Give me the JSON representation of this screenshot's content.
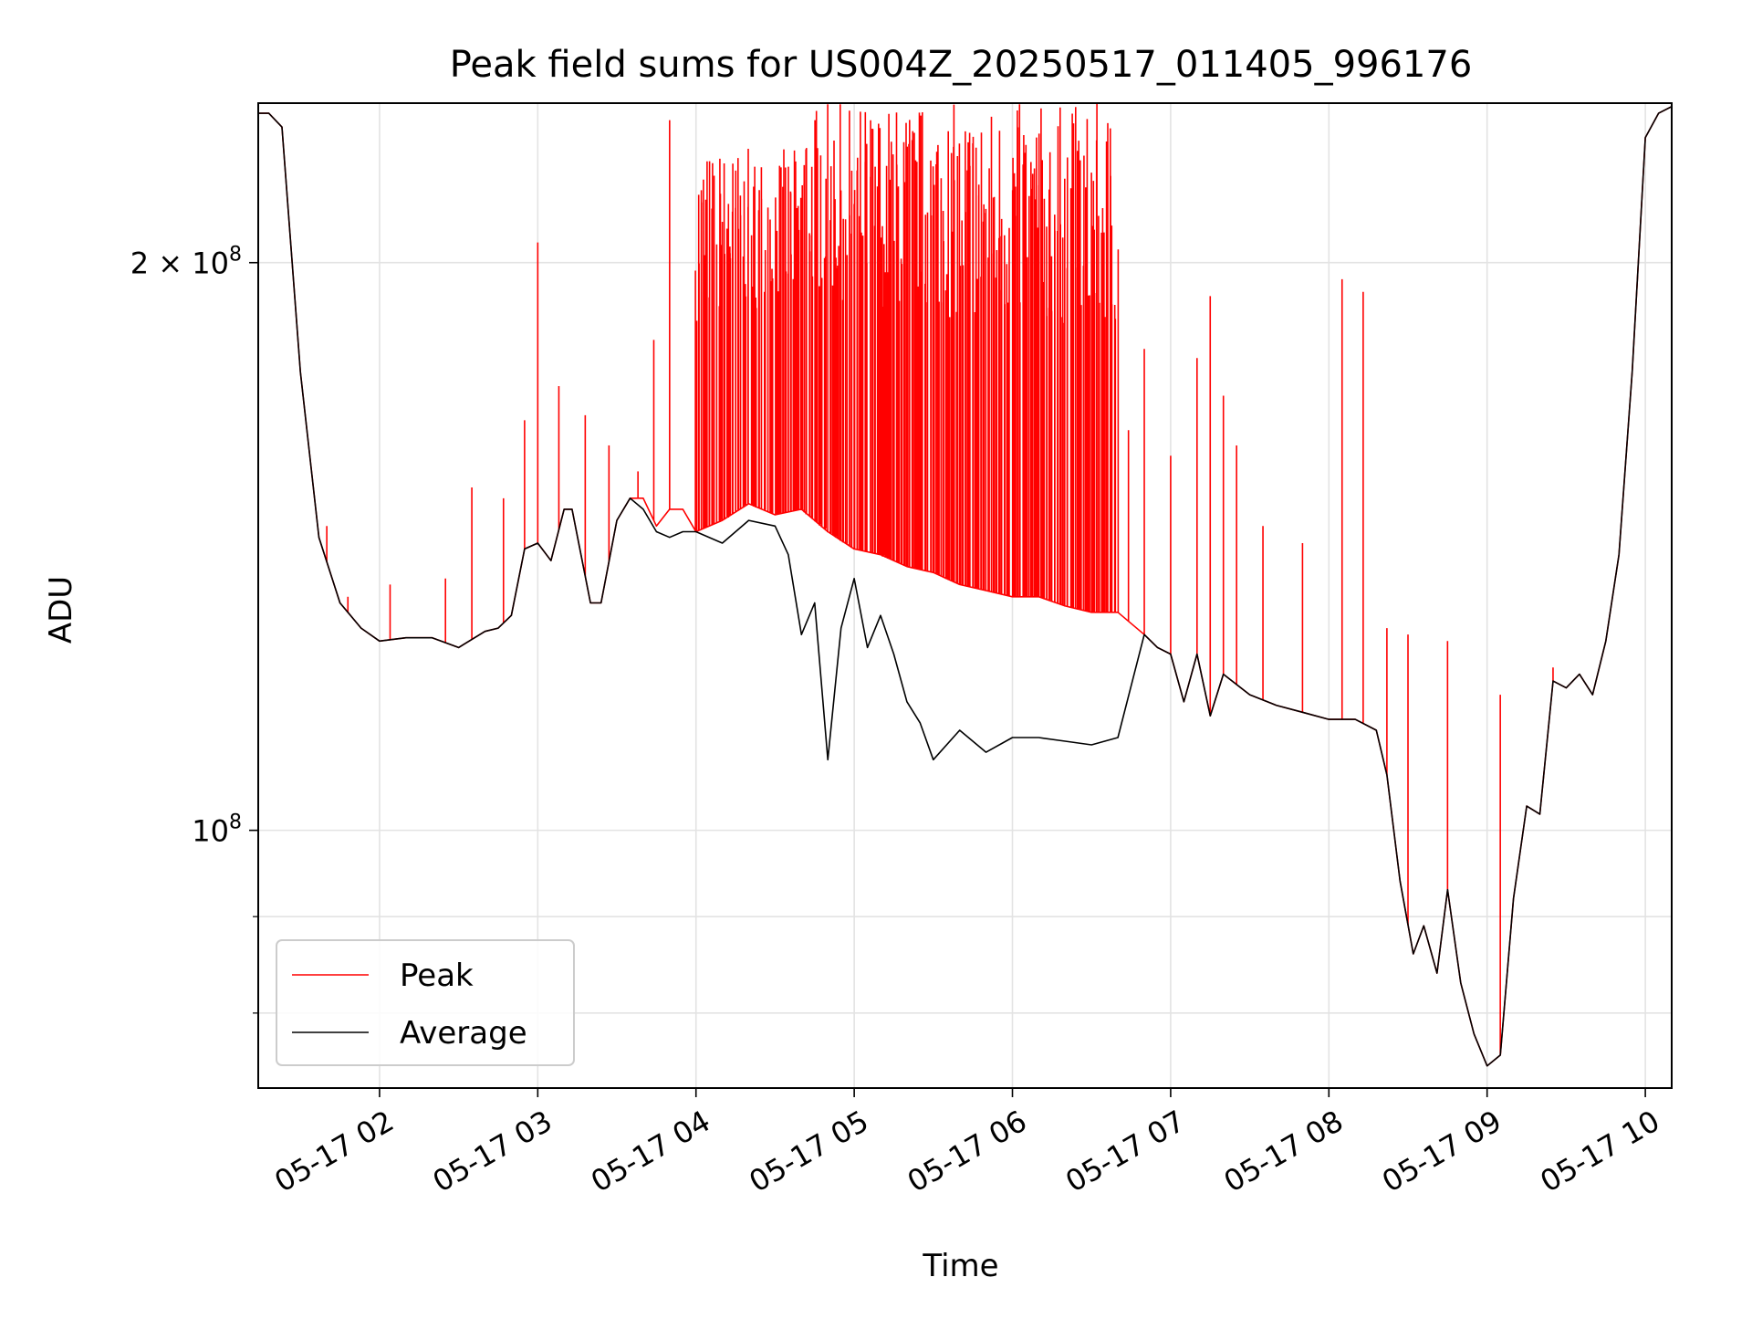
{
  "chart_data": {
    "type": "line",
    "title": "Peak field sums for US004Z_20250517_011405_996176",
    "xlabel": "Time",
    "ylabel": "ADU",
    "y_scale": "log",
    "grid": true,
    "legend_position": "lower-left",
    "xlim": [
      "2025-05-17 01:14",
      "2025-05-17 10:10"
    ],
    "ylim": [
      73000000,
      243000000
    ],
    "x_ticks": [
      {
        "value": "2025-05-17 02:00",
        "label": "05-17 02"
      },
      {
        "value": "2025-05-17 03:00",
        "label": "05-17 03"
      },
      {
        "value": "2025-05-17 04:00",
        "label": "05-17 04"
      },
      {
        "value": "2025-05-17 05:00",
        "label": "05-17 05"
      },
      {
        "value": "2025-05-17 06:00",
        "label": "05-17 06"
      },
      {
        "value": "2025-05-17 07:00",
        "label": "05-17 07"
      },
      {
        "value": "2025-05-17 08:00",
        "label": "05-17 08"
      },
      {
        "value": "2025-05-17 09:00",
        "label": "05-17 09"
      },
      {
        "value": "2025-05-17 10:00",
        "label": "05-17 10"
      }
    ],
    "y_ticks": [
      {
        "value": 200000000,
        "label_main": "2 × 10",
        "label_exp": "8"
      },
      {
        "value": 100000000,
        "label_main": "10",
        "label_exp": "8"
      }
    ],
    "y_minor_ticks": [
      80000000,
      90000000
    ],
    "series": [
      {
        "name": "Peak",
        "color": "#ff0000",
        "spike_bands": [
          {
            "from": "2025-05-17 04:00",
            "to": "2025-05-17 04:40",
            "top": 230000000
          },
          {
            "from": "2025-05-17 04:40",
            "to": "2025-05-17 06:40",
            "top": 243000000
          }
        ],
        "spikes": [
          {
            "x": "2025-05-17 01:40",
            "y": 145000000
          },
          {
            "x": "2025-05-17 01:48",
            "y": 133000000
          },
          {
            "x": "2025-05-17 02:04",
            "y": 135000000
          },
          {
            "x": "2025-05-17 02:25",
            "y": 136000000
          },
          {
            "x": "2025-05-17 02:35",
            "y": 152000000
          },
          {
            "x": "2025-05-17 02:47",
            "y": 150000000
          },
          {
            "x": "2025-05-17 02:55",
            "y": 165000000
          },
          {
            "x": "2025-05-17 03:00",
            "y": 205000000
          },
          {
            "x": "2025-05-17 03:08",
            "y": 172000000
          },
          {
            "x": "2025-05-17 03:18",
            "y": 166000000
          },
          {
            "x": "2025-05-17 03:27",
            "y": 160000000
          },
          {
            "x": "2025-05-17 03:38",
            "y": 155000000
          },
          {
            "x": "2025-05-17 03:44",
            "y": 182000000
          },
          {
            "x": "2025-05-17 03:50",
            "y": 238000000
          },
          {
            "x": "2025-05-17 06:44",
            "y": 163000000
          },
          {
            "x": "2025-05-17 06:50",
            "y": 180000000
          },
          {
            "x": "2025-05-17 07:00",
            "y": 158000000
          },
          {
            "x": "2025-05-17 07:10",
            "y": 178000000
          },
          {
            "x": "2025-05-17 07:15",
            "y": 192000000
          },
          {
            "x": "2025-05-17 07:20",
            "y": 170000000
          },
          {
            "x": "2025-05-17 07:25",
            "y": 160000000
          },
          {
            "x": "2025-05-17 07:35",
            "y": 145000000
          },
          {
            "x": "2025-05-17 07:50",
            "y": 142000000
          },
          {
            "x": "2025-05-17 08:05",
            "y": 196000000
          },
          {
            "x": "2025-05-17 08:13",
            "y": 193000000
          },
          {
            "x": "2025-05-17 08:22",
            "y": 128000000
          },
          {
            "x": "2025-05-17 08:30",
            "y": 127000000
          },
          {
            "x": "2025-05-17 08:45",
            "y": 126000000
          },
          {
            "x": "2025-05-17 09:05",
            "y": 118000000
          },
          {
            "x": "2025-05-17 09:25",
            "y": 122000000
          }
        ],
        "x": [
          "2025-05-17 01:14",
          "2025-05-17 01:18",
          "2025-05-17 01:23",
          "2025-05-17 01:30",
          "2025-05-17 01:37",
          "2025-05-17 01:45",
          "2025-05-17 01:53",
          "2025-05-17 02:00",
          "2025-05-17 02:10",
          "2025-05-17 02:20",
          "2025-05-17 02:30",
          "2025-05-17 02:40",
          "2025-05-17 02:45",
          "2025-05-17 02:50",
          "2025-05-17 02:55",
          "2025-05-17 03:00",
          "2025-05-17 03:05",
          "2025-05-17 03:10",
          "2025-05-17 03:13",
          "2025-05-17 03:20",
          "2025-05-17 03:24",
          "2025-05-17 03:30",
          "2025-05-17 03:35",
          "2025-05-17 03:40",
          "2025-05-17 03:45",
          "2025-05-17 03:50",
          "2025-05-17 03:55",
          "2025-05-17 04:00",
          "2025-05-17 04:10",
          "2025-05-17 04:20",
          "2025-05-17 04:30",
          "2025-05-17 04:40",
          "2025-05-17 04:50",
          "2025-05-17 05:00",
          "2025-05-17 05:10",
          "2025-05-17 05:20",
          "2025-05-17 05:30",
          "2025-05-17 05:40",
          "2025-05-17 05:50",
          "2025-05-17 06:00",
          "2025-05-17 06:10",
          "2025-05-17 06:20",
          "2025-05-17 06:30",
          "2025-05-17 06:40",
          "2025-05-17 06:50",
          "2025-05-17 06:55",
          "2025-05-17 07:00",
          "2025-05-17 07:05",
          "2025-05-17 07:10",
          "2025-05-17 07:15",
          "2025-05-17 07:20",
          "2025-05-17 07:30",
          "2025-05-17 07:40",
          "2025-05-17 07:50",
          "2025-05-17 08:00",
          "2025-05-17 08:10",
          "2025-05-17 08:18",
          "2025-05-17 08:22",
          "2025-05-17 08:27",
          "2025-05-17 08:32",
          "2025-05-17 08:36",
          "2025-05-17 08:41",
          "2025-05-17 08:45",
          "2025-05-17 08:50",
          "2025-05-17 08:55",
          "2025-05-17 09:00",
          "2025-05-17 09:05",
          "2025-05-17 09:10",
          "2025-05-17 09:15",
          "2025-05-17 09:20",
          "2025-05-17 09:25",
          "2025-05-17 09:30",
          "2025-05-17 09:35",
          "2025-05-17 09:40",
          "2025-05-17 09:45",
          "2025-05-17 09:50",
          "2025-05-17 09:55",
          "2025-05-17 10:00",
          "2025-05-17 10:05",
          "2025-05-17 10:10"
        ],
        "values": [
          240000000,
          240000000,
          236000000,
          175000000,
          143000000,
          132000000,
          128000000,
          126000000,
          126500000,
          126500000,
          125000000,
          127500000,
          128000000,
          130000000,
          141000000,
          142000000,
          139000000,
          148000000,
          148000000,
          132000000,
          132000000,
          146000000,
          150000000,
          150000000,
          145000000,
          148000000,
          148000000,
          144000000,
          146000000,
          149000000,
          147000000,
          148000000,
          144000000,
          141000000,
          140000000,
          138000000,
          137000000,
          135000000,
          134000000,
          133000000,
          133000000,
          131500000,
          130500000,
          130500000,
          127000000,
          125000000,
          124000000,
          117000000,
          124000000,
          115000000,
          121000000,
          118000000,
          116500000,
          115500000,
          114500000,
          114500000,
          113000000,
          107000000,
          94000000,
          86000000,
          89000000,
          84000000,
          93000000,
          83000000,
          78000000,
          75000000,
          76000000,
          92000000,
          103000000,
          102000000,
          120000000,
          119000000,
          121000000,
          118000000,
          126000000,
          140000000,
          175000000,
          233000000,
          240000000,
          242000000
        ]
      },
      {
        "name": "Average",
        "color": "#000000",
        "x": [
          "2025-05-17 01:14",
          "2025-05-17 01:18",
          "2025-05-17 01:23",
          "2025-05-17 01:30",
          "2025-05-17 01:37",
          "2025-05-17 01:45",
          "2025-05-17 01:53",
          "2025-05-17 02:00",
          "2025-05-17 02:10",
          "2025-05-17 02:20",
          "2025-05-17 02:30",
          "2025-05-17 02:40",
          "2025-05-17 02:45",
          "2025-05-17 02:50",
          "2025-05-17 02:55",
          "2025-05-17 03:00",
          "2025-05-17 03:05",
          "2025-05-17 03:10",
          "2025-05-17 03:13",
          "2025-05-17 03:20",
          "2025-05-17 03:24",
          "2025-05-17 03:30",
          "2025-05-17 03:35",
          "2025-05-17 03:40",
          "2025-05-17 03:45",
          "2025-05-17 03:50",
          "2025-05-17 03:55",
          "2025-05-17 04:00",
          "2025-05-17 04:10",
          "2025-05-17 04:20",
          "2025-05-17 04:30",
          "2025-05-17 04:35",
          "2025-05-17 04:40",
          "2025-05-17 04:45",
          "2025-05-17 04:50",
          "2025-05-17 04:55",
          "2025-05-17 05:00",
          "2025-05-17 05:05",
          "2025-05-17 05:10",
          "2025-05-17 05:15",
          "2025-05-17 05:20",
          "2025-05-17 05:25",
          "2025-05-17 05:30",
          "2025-05-17 05:40",
          "2025-05-17 05:50",
          "2025-05-17 06:00",
          "2025-05-17 06:10",
          "2025-05-17 06:20",
          "2025-05-17 06:30",
          "2025-05-17 06:40",
          "2025-05-17 06:50",
          "2025-05-17 06:55",
          "2025-05-17 07:00",
          "2025-05-17 07:05",
          "2025-05-17 07:10",
          "2025-05-17 07:15",
          "2025-05-17 07:20",
          "2025-05-17 07:30",
          "2025-05-17 07:40",
          "2025-05-17 07:50",
          "2025-05-17 08:00",
          "2025-05-17 08:10",
          "2025-05-17 08:18",
          "2025-05-17 08:22",
          "2025-05-17 08:27",
          "2025-05-17 08:32",
          "2025-05-17 08:36",
          "2025-05-17 08:41",
          "2025-05-17 08:45",
          "2025-05-17 08:50",
          "2025-05-17 08:55",
          "2025-05-17 09:00",
          "2025-05-17 09:05",
          "2025-05-17 09:10",
          "2025-05-17 09:15",
          "2025-05-17 09:20",
          "2025-05-17 09:25",
          "2025-05-17 09:30",
          "2025-05-17 09:35",
          "2025-05-17 09:40",
          "2025-05-17 09:45",
          "2025-05-17 09:50",
          "2025-05-17 09:55",
          "2025-05-17 10:00",
          "2025-05-17 10:05",
          "2025-05-17 10:10"
        ],
        "values": [
          240000000,
          240000000,
          236000000,
          175000000,
          143000000,
          132000000,
          128000000,
          126000000,
          126500000,
          126500000,
          125000000,
          127500000,
          128000000,
          130000000,
          141000000,
          142000000,
          139000000,
          148000000,
          148000000,
          132000000,
          132000000,
          146000000,
          150000000,
          148000000,
          144000000,
          143000000,
          144000000,
          144000000,
          142000000,
          146000000,
          145000000,
          140000000,
          127000000,
          132000000,
          109000000,
          128000000,
          136000000,
          125000000,
          130000000,
          124000000,
          117000000,
          114000000,
          109000000,
          113000000,
          110000000,
          112000000,
          112000000,
          111500000,
          111000000,
          112000000,
          127000000,
          125000000,
          124000000,
          117000000,
          124000000,
          115000000,
          121000000,
          118000000,
          116500000,
          115500000,
          114500000,
          114500000,
          113000000,
          107000000,
          94000000,
          86000000,
          89000000,
          84000000,
          93000000,
          83000000,
          78000000,
          75000000,
          76000000,
          92000000,
          103000000,
          102000000,
          120000000,
          119000000,
          121000000,
          118000000,
          126000000,
          140000000,
          175000000,
          233000000,
          240000000,
          242000000
        ]
      }
    ]
  }
}
